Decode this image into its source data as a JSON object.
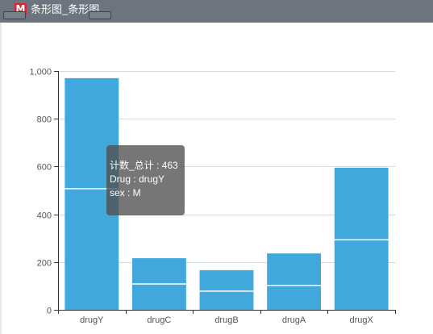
{
  "window": {
    "title": "条形图_条形图",
    "icon": "M",
    "icon_color": "#d9262f"
  },
  "tooltip": {
    "line1": "计数_总计 : 463",
    "line2": "Drug : drugY",
    "line3": "sex : M"
  },
  "colors": {
    "bar": "#41a8de",
    "segment_divider": "#ffffff",
    "grid": "#d9d9d9",
    "axis": "#333333"
  },
  "chart_data": {
    "type": "bar",
    "stacked": true,
    "categories": [
      "drugY",
      "drugC",
      "drugB",
      "drugA",
      "drugX"
    ],
    "series": [
      {
        "values": [
          507,
          108,
          78,
          102,
          293
        ]
      },
      {
        "values": [
          463,
          108,
          88,
          134,
          302
        ]
      }
    ],
    "totals": [
      970,
      216,
      166,
      236,
      595
    ],
    "y_ticks": [
      "0",
      "200",
      "400",
      "600",
      "800",
      "1,000"
    ],
    "ylim": [
      0,
      1000
    ],
    "grid": true,
    "legend": "none"
  }
}
